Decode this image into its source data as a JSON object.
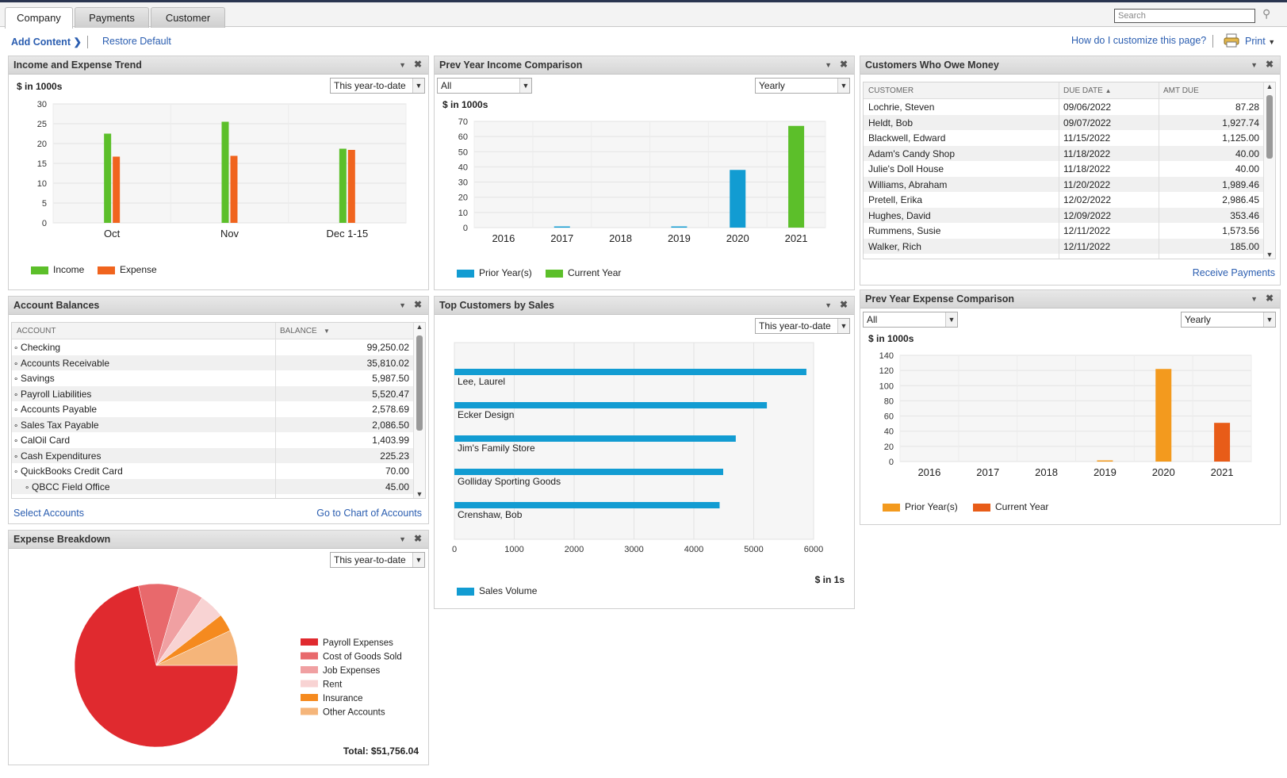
{
  "tabs": [
    "Company",
    "Payments",
    "Customer"
  ],
  "search": {
    "placeholder": "Search"
  },
  "toolbar": {
    "add_content": "Add Content",
    "restore_default": "Restore Default",
    "help": "How do I customize this page?",
    "print": "Print"
  },
  "colors": {
    "income": "#5cbf2a",
    "expense": "#f0641e",
    "prior": "#129cd2",
    "current": "#5cbf2a",
    "exp_prior": "#f39a1e",
    "exp_current": "#e85c18"
  },
  "income_expense": {
    "title": "Income and Expense Trend",
    "unit": "$ in 1000s",
    "period": "This year-to-date",
    "legend": [
      "Income",
      "Expense"
    ],
    "chart_data": {
      "type": "bar",
      "categories": [
        "Oct",
        "Nov",
        "Dec 1-15"
      ],
      "series": [
        {
          "name": "Income",
          "values": [
            22.5,
            25.5,
            18.7
          ]
        },
        {
          "name": "Expense",
          "values": [
            16.7,
            16.9,
            18.4
          ]
        }
      ],
      "ylim": [
        0,
        30
      ],
      "yticks": [
        0,
        5,
        10,
        15,
        20,
        25,
        30
      ]
    }
  },
  "prev_income": {
    "title": "Prev Year Income Comparison",
    "filter": "All",
    "period": "Yearly",
    "unit": "$ in 1000s",
    "legend": [
      "Prior Year(s)",
      "Current Year"
    ],
    "chart_data": {
      "type": "bar",
      "categories": [
        "2016",
        "2017",
        "2018",
        "2019",
        "2020",
        "2021"
      ],
      "series": [
        {
          "name": "Prior Year(s)",
          "values": [
            0,
            0.3,
            0,
            0.5,
            38,
            0
          ]
        },
        {
          "name": "Current Year",
          "values": [
            0,
            0,
            0,
            0,
            0,
            67
          ]
        }
      ],
      "ylim": [
        0,
        70
      ],
      "yticks": [
        0,
        10,
        20,
        30,
        40,
        50,
        60,
        70
      ]
    }
  },
  "owe_money": {
    "title": "Customers Who Owe Money",
    "headers": [
      "CUSTOMER",
      "DUE DATE",
      "AMT DUE"
    ],
    "rows": [
      [
        "Lochrie, Steven",
        "09/06/2022",
        "87.28"
      ],
      [
        "Heldt, Bob",
        "09/07/2022",
        "1,927.74"
      ],
      [
        "Blackwell, Edward",
        "11/15/2022",
        "1,125.00"
      ],
      [
        "Adam's Candy Shop",
        "11/18/2022",
        "40.00"
      ],
      [
        "Julie's Doll House",
        "11/18/2022",
        "40.00"
      ],
      [
        "Williams, Abraham",
        "11/20/2022",
        "1,989.46"
      ],
      [
        "Pretell, Erika",
        "12/02/2022",
        "2,986.45"
      ],
      [
        "Hughes, David",
        "12/09/2022",
        "353.46"
      ],
      [
        "Rummens, Susie",
        "12/11/2022",
        "1,573.56"
      ],
      [
        "Walker, Rich",
        "12/11/2022",
        "185.00"
      ]
    ],
    "footer_link": "Receive Payments"
  },
  "account_balances": {
    "title": "Account Balances",
    "headers": [
      "ACCOUNT",
      "BALANCE"
    ],
    "rows": [
      [
        "Checking",
        "99,250.02"
      ],
      [
        "Accounts Receivable",
        "35,810.02"
      ],
      [
        "Savings",
        "5,987.50"
      ],
      [
        "Payroll Liabilities",
        "5,520.47"
      ],
      [
        "Accounts Payable",
        "2,578.69"
      ],
      [
        "Sales Tax Payable",
        "2,086.50"
      ],
      [
        "CalOil Card",
        "1,403.99"
      ],
      [
        "Cash Expenditures",
        "225.23"
      ],
      [
        "QuickBooks Credit Card",
        "70.00"
      ],
      [
        "QBCC Field Office",
        "45.00"
      ]
    ],
    "select_link": "Select Accounts",
    "chart_link": "Go to Chart of Accounts"
  },
  "top_customers": {
    "title": "Top Customers by Sales",
    "period": "This year-to-date",
    "unit": "$ in 1s",
    "legend": [
      "Sales Volume"
    ],
    "chart_data": {
      "type": "bar",
      "orientation": "horizontal",
      "categories": [
        "Lee, Laurel",
        "Ecker Design",
        "Jim's Family Store",
        "Golliday Sporting Goods",
        "Crenshaw, Bob"
      ],
      "series": [
        {
          "name": "Sales Volume",
          "values": [
            5880,
            5220,
            4700,
            4490,
            4430
          ]
        }
      ],
      "xlim": [
        0,
        6000
      ],
      "xticks": [
        0,
        1000,
        2000,
        3000,
        4000,
        5000,
        6000
      ]
    }
  },
  "prev_expense": {
    "title": "Prev Year Expense Comparison",
    "filter": "All",
    "period": "Yearly",
    "unit": "$ in 1000s",
    "legend": [
      "Prior Year(s)",
      "Current Year"
    ],
    "chart_data": {
      "type": "bar",
      "categories": [
        "2016",
        "2017",
        "2018",
        "2019",
        "2020",
        "2021"
      ],
      "series": [
        {
          "name": "Prior Year(s)",
          "values": [
            0,
            0,
            0,
            1.5,
            122,
            0
          ]
        },
        {
          "name": "Current Year",
          "values": [
            0,
            0,
            0,
            0,
            0,
            51
          ]
        }
      ],
      "ylim": [
        0,
        140
      ],
      "yticks": [
        0,
        20,
        40,
        60,
        80,
        100,
        120,
        140
      ]
    }
  },
  "expense_breakdown": {
    "title": "Expense Breakdown",
    "period": "This year-to-date",
    "total": "Total: $51,756.04",
    "chart_data": {
      "type": "pie",
      "labels": [
        "Payroll Expenses",
        "Cost of Goods Sold",
        "Job Expenses",
        "Rent",
        "Insurance",
        "Other Accounts"
      ],
      "values": [
        71.5,
        8,
        5,
        5,
        3.5,
        7
      ],
      "colors": [
        "#e02a2f",
        "#e8696c",
        "#f0a0a2",
        "#f8d3d3",
        "#f58a1f",
        "#f5b57a"
      ]
    }
  }
}
